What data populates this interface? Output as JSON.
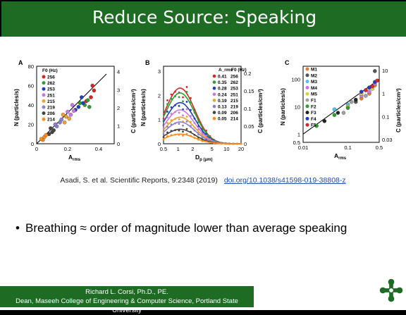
{
  "slide": {
    "title": "Reduce Source: Speaking",
    "bullet": "Breathing ≈ order of magnitude lower than average speaking",
    "citation": {
      "text": "Asadi, S. et al. Scientific Reports, 9:2348 (2019)",
      "doi": "doi.org/10.1038/s41598-019-38808-z"
    },
    "footer": {
      "name": "Richard L. Corsi, Ph.D., PE.",
      "affiliation": "Dean, Maseeh College of Engineering & Computer Science, Portland State University"
    },
    "colors": {
      "green": "#1e6b23",
      "accent": "#1a4fb0"
    }
  },
  "chart_data": [
    {
      "panel": "A",
      "type": "scatter",
      "xlabel": "A_rms",
      "ylabel": "N (particles/s)",
      "ylabel_right": "C (particles/cm³)",
      "xlim": [
        0,
        0.5
      ],
      "ylim": [
        0,
        80
      ],
      "xticks": [
        "0",
        "0.2",
        "0.4"
      ],
      "yticks": [
        "0",
        "20",
        "40",
        "60",
        "80"
      ],
      "yticks_right": [
        "0",
        "1",
        "2",
        "3",
        "4"
      ],
      "legend_title": "F0 (Hz)",
      "series": [
        {
          "name": "256",
          "color": "#d62728",
          "points": [
            [
              0.35,
              48
            ],
            [
              0.36,
              60
            ],
            [
              0.37,
              55
            ],
            [
              0.32,
              44
            ]
          ]
        },
        {
          "name": "262",
          "color": "#2ca02c",
          "points": [
            [
              0.31,
              40
            ],
            [
              0.33,
              45
            ],
            [
              0.28,
              42
            ],
            [
              0.34,
              38
            ]
          ]
        },
        {
          "name": "253",
          "color": "#1f3fbf",
          "points": [
            [
              0.25,
              35
            ],
            [
              0.27,
              38
            ],
            [
              0.3,
              42
            ],
            [
              0.29,
              48
            ]
          ]
        },
        {
          "name": "251",
          "color": "#c879e0",
          "points": [
            [
              0.2,
              33
            ],
            [
              0.22,
              30
            ],
            [
              0.24,
              34
            ],
            [
              0.23,
              40
            ]
          ]
        },
        {
          "name": "215",
          "color": "#f0a030",
          "points": [
            [
              0.18,
              22
            ],
            [
              0.21,
              26
            ],
            [
              0.19,
              28
            ],
            [
              0.17,
              30
            ]
          ]
        },
        {
          "name": "219",
          "color": "#8a7fd0",
          "points": [
            [
              0.13,
              18
            ],
            [
              0.15,
              22
            ],
            [
              0.16,
              25
            ],
            [
              0.12,
              20
            ]
          ]
        },
        {
          "name": "206",
          "color": "#444444",
          "points": [
            [
              0.08,
              10
            ],
            [
              0.1,
              12
            ],
            [
              0.09,
              16
            ],
            [
              0.11,
              14
            ]
          ]
        },
        {
          "name": "214",
          "color": "#ff8c1a",
          "points": [
            [
              0.04,
              4
            ],
            [
              0.05,
              7
            ],
            [
              0.06,
              9
            ],
            [
              0.03,
              5
            ]
          ]
        }
      ],
      "fit": [
        [
          0.0,
          0.0
        ],
        [
          0.45,
          72
        ]
      ]
    },
    {
      "panel": "B",
      "type": "scatter",
      "xlabel": "D_p (μm)",
      "ylabel": "N (particles/s)",
      "ylabel_right": "C (particles/cm³)",
      "xscale": "log",
      "xlim": [
        0.5,
        20
      ],
      "ylim": [
        0,
        3.2
      ],
      "xticks": [
        "0.5",
        "1",
        "2",
        "5",
        "10",
        "20"
      ],
      "yticks": [
        "0",
        "1",
        "2",
        "3"
      ],
      "yticks_right": [
        "0",
        "0.05",
        "0.1",
        "0.15",
        "0.2"
      ],
      "legend_header": [
        "A_rms",
        "F0 (Hz)"
      ],
      "series": [
        {
          "name": "0.41",
          "f0": "256",
          "color": "#d62728",
          "peak": 2.3
        },
        {
          "name": "0.35",
          "f0": "262",
          "color": "#2ca02c",
          "peak": 2.1
        },
        {
          "name": "0.28",
          "f0": "253",
          "color": "#1f3fbf",
          "peak": 1.7
        },
        {
          "name": "0.24",
          "f0": "251",
          "color": "#c879e0",
          "peak": 1.4
        },
        {
          "name": "0.19",
          "f0": "215",
          "color": "#f0a030",
          "peak": 1.1
        },
        {
          "name": "0.13",
          "f0": "219",
          "color": "#8a7fd0",
          "peak": 0.9
        },
        {
          "name": "0.09",
          "f0": "206",
          "color": "#444444",
          "peak": 0.6
        },
        {
          "name": "0.05",
          "f0": "214",
          "color": "#ff8c1a",
          "peak": 0.4
        }
      ]
    },
    {
      "panel": "C",
      "type": "scatter",
      "xlabel": "A_rms",
      "ylabel": "N (particles/s)",
      "ylabel_right": "C (particles/cm³)",
      "xscale": "log",
      "yscale": "log",
      "xlim": [
        0.01,
        0.5
      ],
      "ylim": [
        0.5,
        300
      ],
      "xticks": [
        "0.01",
        "0.1",
        "0.5"
      ],
      "yticks": [
        "0.5",
        "1",
        "10",
        "100"
      ],
      "yticks_right": [
        "0.03",
        "0.1",
        "1",
        "10"
      ],
      "series": [
        {
          "name": "M1",
          "color": "#e08030",
          "points": [
            [
              0.3,
              30
            ],
            [
              0.4,
              60
            ],
            [
              0.2,
              20
            ]
          ]
        },
        {
          "name": "M2",
          "color": "#555555",
          "points": [
            [
              0.4,
              200
            ],
            [
              0.3,
              50
            ],
            [
              0.15,
              15
            ]
          ]
        },
        {
          "name": "M3",
          "color": "#4fc3e8",
          "points": [
            [
              0.05,
              8
            ],
            [
              0.1,
              12
            ],
            [
              0.25,
              40
            ]
          ]
        },
        {
          "name": "M4",
          "color": "#c879e0",
          "points": [
            [
              0.3,
              35
            ],
            [
              0.4,
              70
            ],
            [
              0.2,
              25
            ]
          ]
        },
        {
          "name": "M5",
          "color": "#e0d040",
          "points": [
            [
              0.2,
              30
            ],
            [
              0.35,
              45
            ],
            [
              0.1,
              10
            ]
          ]
        },
        {
          "name": "F1",
          "color": "#a0a0a0",
          "points": [
            [
              0.12,
              15
            ],
            [
              0.25,
              25
            ],
            [
              0.08,
              6
            ]
          ]
        },
        {
          "name": "F2",
          "color": "#2ca02c",
          "points": [
            [
              0.02,
              2
            ],
            [
              0.05,
              5
            ],
            [
              0.1,
              9
            ]
          ]
        },
        {
          "name": "F3",
          "color": "#222222",
          "points": [
            [
              0.03,
              3
            ],
            [
              0.06,
              6
            ],
            [
              0.15,
              18
            ]
          ]
        },
        {
          "name": "F4",
          "color": "#1f3fbf",
          "points": [
            [
              0.3,
              50
            ],
            [
              0.4,
              80
            ],
            [
              0.2,
              35
            ]
          ]
        },
        {
          "name": "F5",
          "color": "#d62728",
          "points": [
            [
              0.25,
              40
            ],
            [
              0.35,
              55
            ],
            [
              0.45,
              90
            ]
          ]
        }
      ],
      "fit": [
        [
          0.01,
          1
        ],
        [
          0.5,
          100
        ]
      ]
    }
  ]
}
